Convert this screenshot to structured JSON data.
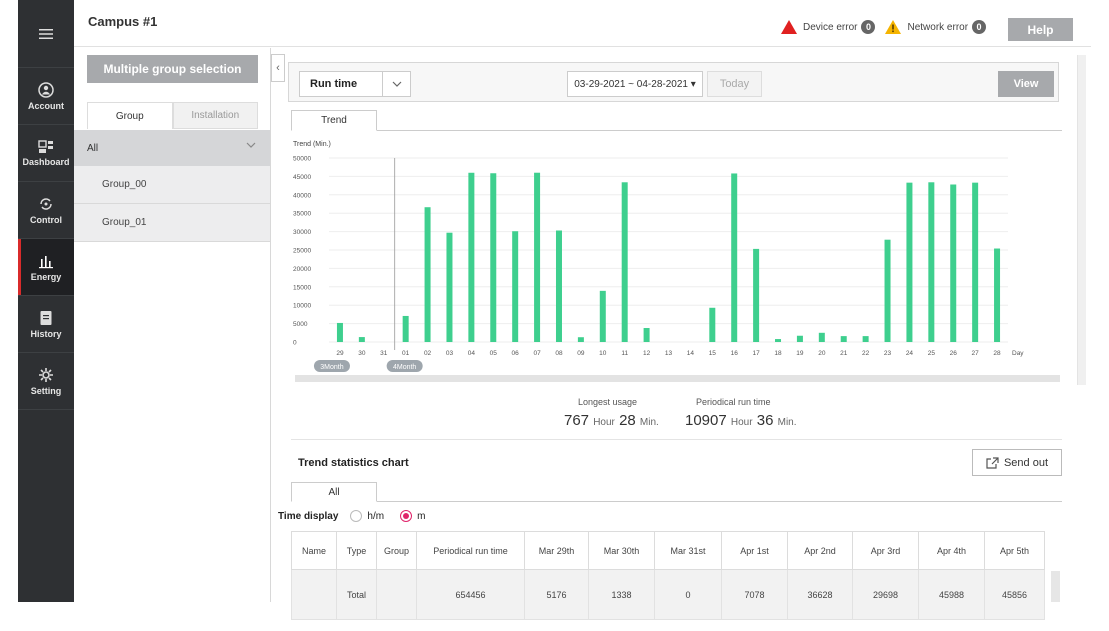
{
  "header": {
    "campus": "Campus #1",
    "device_error_label": "Device error",
    "device_error_count": "0",
    "network_error_label": "Network error",
    "network_error_count": "0",
    "help_label": "Help"
  },
  "sidebar": {
    "items": [
      {
        "label": "Account",
        "icon": "account-icon"
      },
      {
        "label": "Dashboard",
        "icon": "dashboard-icon"
      },
      {
        "label": "Control",
        "icon": "control-icon"
      },
      {
        "label": "Energy",
        "icon": "energy-icon",
        "active": true
      },
      {
        "label": "History",
        "icon": "history-icon"
      },
      {
        "label": "Setting",
        "icon": "setting-icon"
      }
    ]
  },
  "left_panel": {
    "multi_group_label": "Multiple group selection",
    "tabs": [
      "Group",
      "Installation"
    ],
    "all_label": "All",
    "groups": [
      "Group_00",
      "Group_01"
    ]
  },
  "toolbar": {
    "select_value": "Run time",
    "date_range": "03-29-2021 ~ 04-28-2021 ▾",
    "today_label": "Today",
    "view_label": "View"
  },
  "trend_tab": "Trend",
  "chart_data": {
    "type": "bar",
    "ylabel": "Trend (Min.)",
    "ylim": [
      0,
      50000
    ],
    "yticks": [
      0,
      5000,
      10000,
      15000,
      20000,
      25000,
      30000,
      35000,
      40000,
      45000,
      50000
    ],
    "categories": [
      "29",
      "30",
      "31",
      "01",
      "02",
      "03",
      "04",
      "05",
      "06",
      "07",
      "08",
      "09",
      "10",
      "11",
      "12",
      "13",
      "14",
      "15",
      "16",
      "17",
      "18",
      "19",
      "20",
      "21",
      "22",
      "23",
      "24",
      "25",
      "26",
      "27",
      "28"
    ],
    "values": [
      5176,
      1338,
      0,
      7078,
      36628,
      29698,
      45988,
      45856,
      30100,
      46000,
      30300,
      1300,
      13900,
      43400,
      3800,
      0,
      0,
      9300,
      45800,
      25300,
      800,
      1700,
      2500,
      1600,
      1600,
      27800,
      43300,
      43400,
      42800,
      43300,
      25400
    ],
    "x_unit": "Day",
    "month_markers": [
      {
        "label": "3Month",
        "at": "29"
      },
      {
        "label": "4Month",
        "at": "01"
      }
    ],
    "bar_color": "#3ecf8e",
    "grid": true
  },
  "usage": {
    "longest_label": "Longest usage",
    "longest_hours": "767",
    "longest_minutes": "28",
    "periodical_label": "Periodical run time",
    "periodical_hours": "10907",
    "periodical_minutes": "36",
    "hour_unit": "Hour",
    "min_unit": "Min."
  },
  "stats": {
    "title": "Trend statistics chart",
    "send_out_label": "Send out",
    "tab": "All",
    "time_display_label": "Time display",
    "options": [
      "h/m",
      "m"
    ],
    "selected": "m",
    "columns": [
      "Name",
      "Type",
      "Group",
      "Periodical run time",
      "Mar 29th",
      "Mar 30th",
      "Mar 31st",
      "Apr 1st",
      "Apr 2nd",
      "Apr 3rd",
      "Apr 4th",
      "Apr 5th"
    ],
    "rows": [
      [
        "",
        "Total",
        "",
        "654456",
        "5176",
        "1338",
        "0",
        "7078",
        "36628",
        "29698",
        "45988",
        "45856"
      ]
    ]
  }
}
